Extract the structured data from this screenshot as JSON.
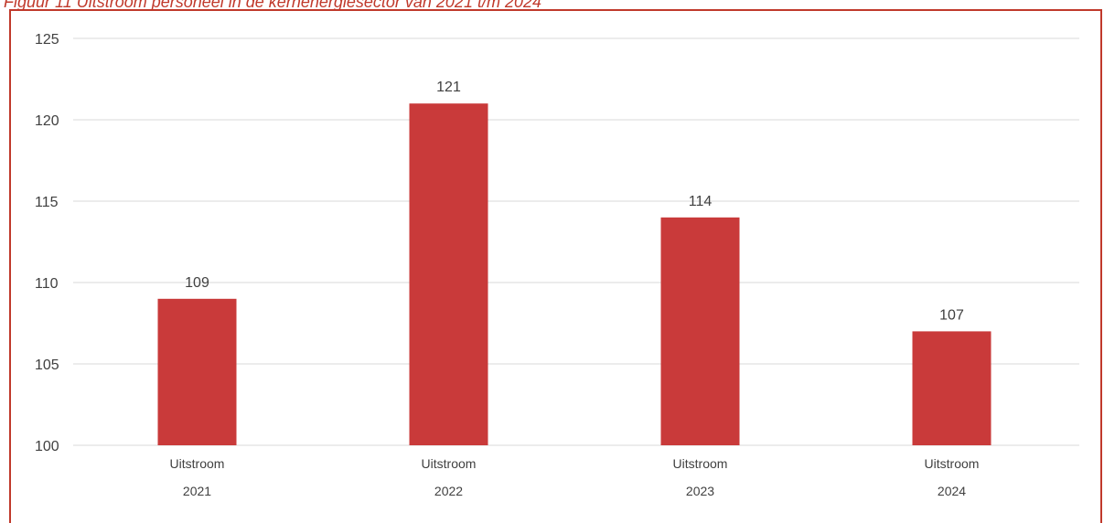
{
  "figure": {
    "caption": "Figuur 11 Uitstroom personeel in de kernenergiesector van 2021 t/m 2024"
  },
  "colors": {
    "accent": "#c0392b",
    "bar": "#c93a3a",
    "grid": "#d9d9d9",
    "text": "#404040"
  },
  "chart_data": {
    "type": "bar",
    "title": "",
    "xlabel": "",
    "ylabel": "",
    "categories": [
      "Uitstroom 2021",
      "Uitstroom 2022",
      "Uitstroom 2023",
      "Uitstroom 2024"
    ],
    "category_lines": [
      [
        "Uitstroom",
        "2021"
      ],
      [
        "Uitstroom",
        "2022"
      ],
      [
        "Uitstroom",
        "2023"
      ],
      [
        "Uitstroom",
        "2024"
      ]
    ],
    "values": [
      109,
      121,
      114,
      107
    ],
    "data_labels": [
      "109",
      "121",
      "114",
      "107"
    ],
    "ylim": [
      100,
      125
    ],
    "yticks": [
      100,
      105,
      110,
      115,
      120,
      125
    ],
    "ytick_labels": [
      "100",
      "105",
      "110",
      "115",
      "120",
      "125"
    ],
    "grid": true,
    "legend": "none"
  }
}
